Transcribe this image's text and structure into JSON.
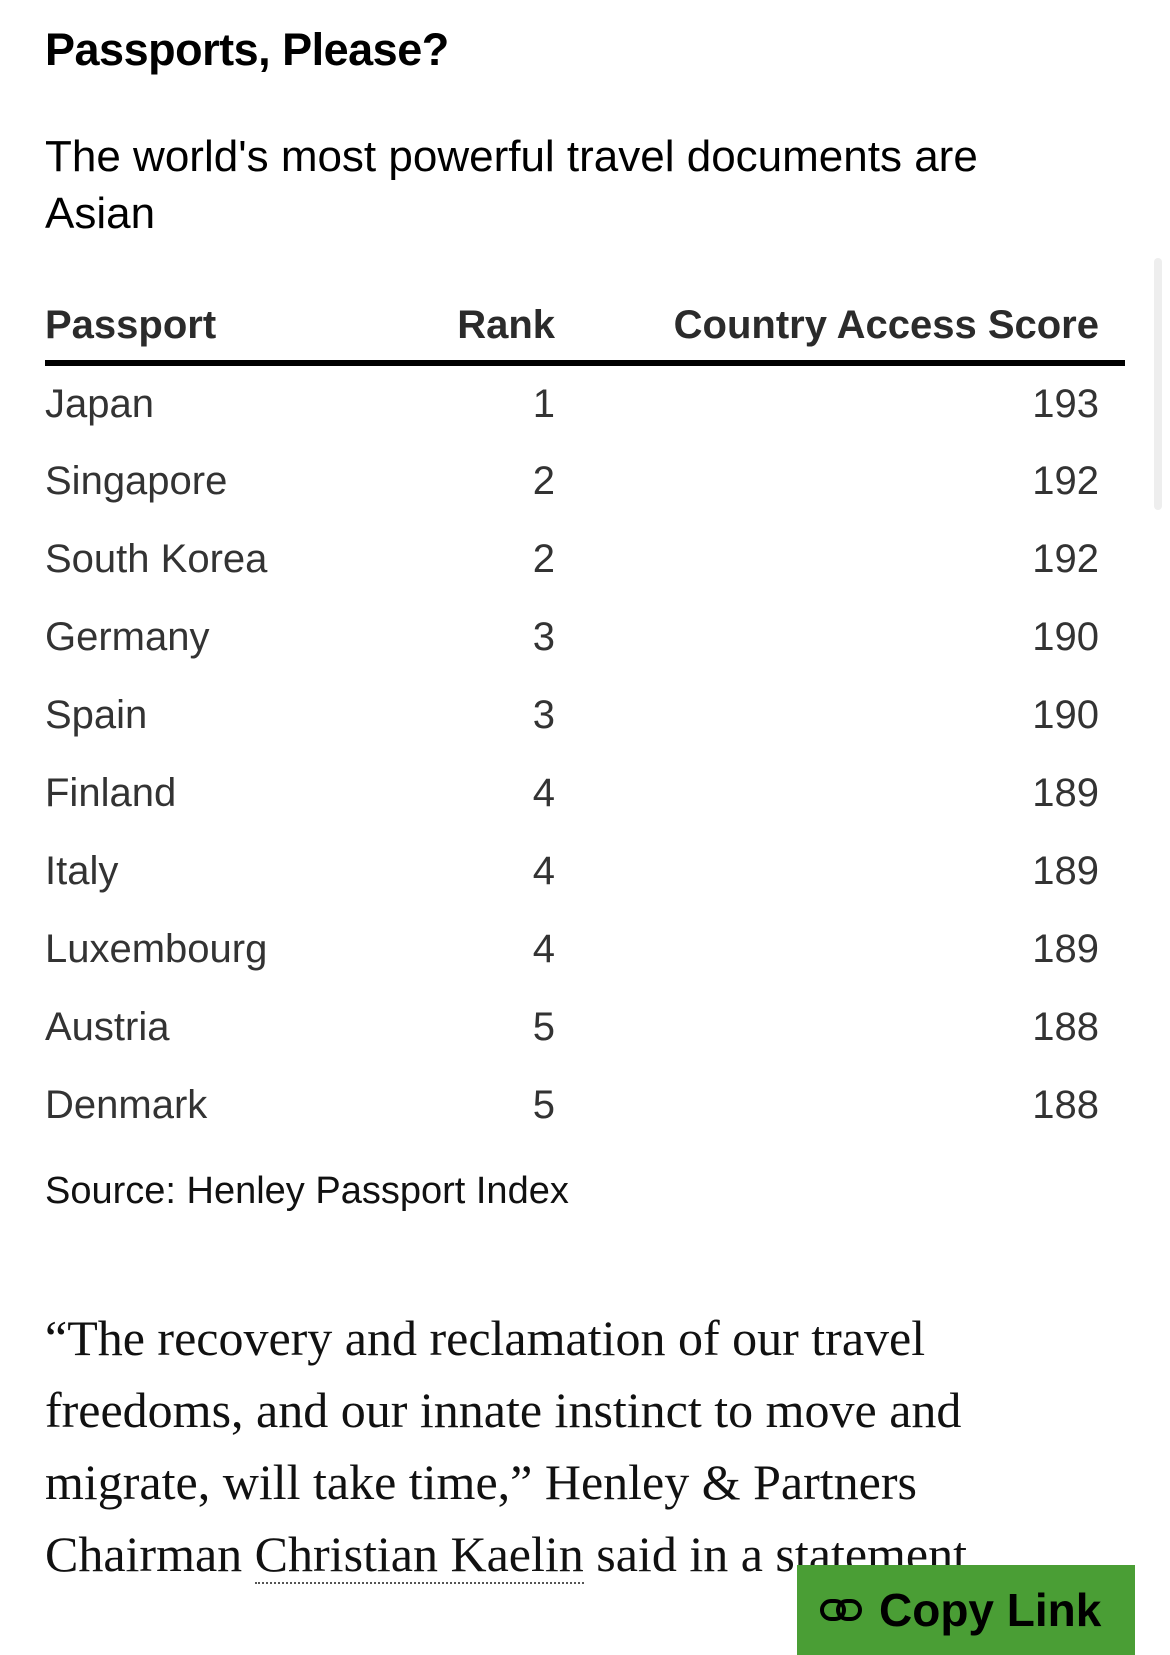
{
  "title": "Passports, Please?",
  "subtitle": "The world's most powerful travel documents are Asian",
  "table": {
    "headers": [
      "Passport",
      "Rank",
      "Country Access Score"
    ],
    "rows": [
      [
        "Japan",
        "1",
        "193"
      ],
      [
        "Singapore",
        "2",
        "192"
      ],
      [
        "South Korea",
        "2",
        "192"
      ],
      [
        "Germany",
        "3",
        "190"
      ],
      [
        "Spain",
        "3",
        "190"
      ],
      [
        "Finland",
        "4",
        "189"
      ],
      [
        "Italy",
        "4",
        "189"
      ],
      [
        "Luxembourg",
        "4",
        "189"
      ],
      [
        "Austria",
        "5",
        "188"
      ],
      [
        "Denmark",
        "5",
        "188"
      ]
    ]
  },
  "source": "Source: Henley Passport Index",
  "quote": {
    "before": "“The recovery and reclamation of our travel freedoms, and our innate instinct to move and migrate, will take time,” Henley & Partners Chairman ",
    "link": "Christian Kaelin",
    "after": " said in a statement."
  },
  "copy_button": {
    "label": "Copy Link",
    "icon": "link-icon",
    "color": "#4a9e35"
  }
}
